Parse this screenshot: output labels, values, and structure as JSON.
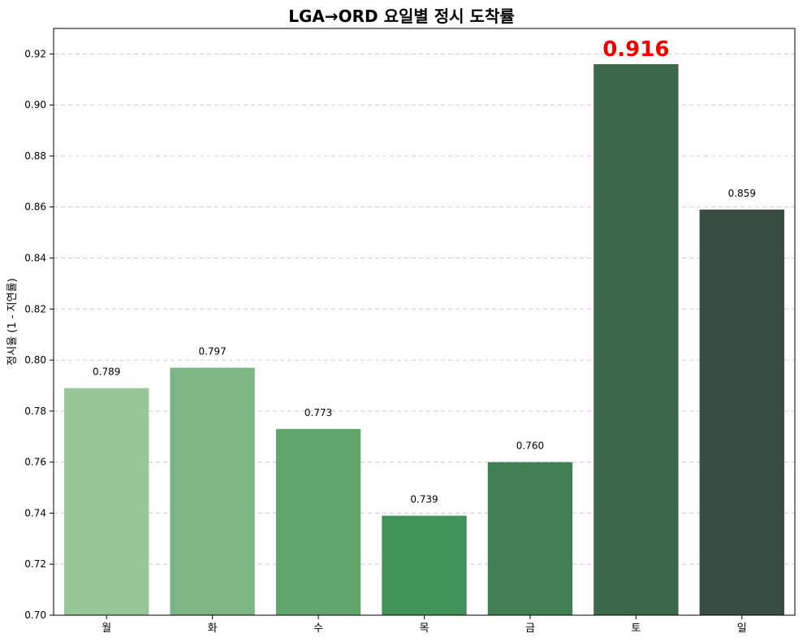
{
  "chart_data": {
    "type": "bar",
    "title": "LGA→ORD 요일별 정시 도착률",
    "xlabel": "",
    "ylabel": "정시율 (1 - 지연률)",
    "categories": [
      "월",
      "화",
      "수",
      "목",
      "금",
      "토",
      "일"
    ],
    "values": [
      0.789,
      0.797,
      0.773,
      0.739,
      0.76,
      0.916,
      0.859
    ],
    "value_labels": [
      "0.789",
      "0.797",
      "0.773",
      "0.739",
      "0.760",
      "0.916",
      "0.859"
    ],
    "highlight_index": 5,
    "highlight_color": "#ee0000",
    "bar_colors": [
      "#98c699",
      "#7cb684",
      "#5fa56d",
      "#439259",
      "#417f55",
      "#3c6749",
      "#384d40"
    ],
    "ylim": [
      0.7,
      0.93
    ],
    "yticks": [
      0.7,
      0.72,
      0.74,
      0.76,
      0.78,
      0.8,
      0.82,
      0.84,
      0.86,
      0.88,
      0.9,
      0.92
    ],
    "ytick_labels": [
      "0.70",
      "0.72",
      "0.74",
      "0.76",
      "0.78",
      "0.80",
      "0.82",
      "0.84",
      "0.86",
      "0.88",
      "0.90",
      "0.92"
    ],
    "grid": "horizontal-dashed",
    "grid_color": "#cccccc"
  }
}
